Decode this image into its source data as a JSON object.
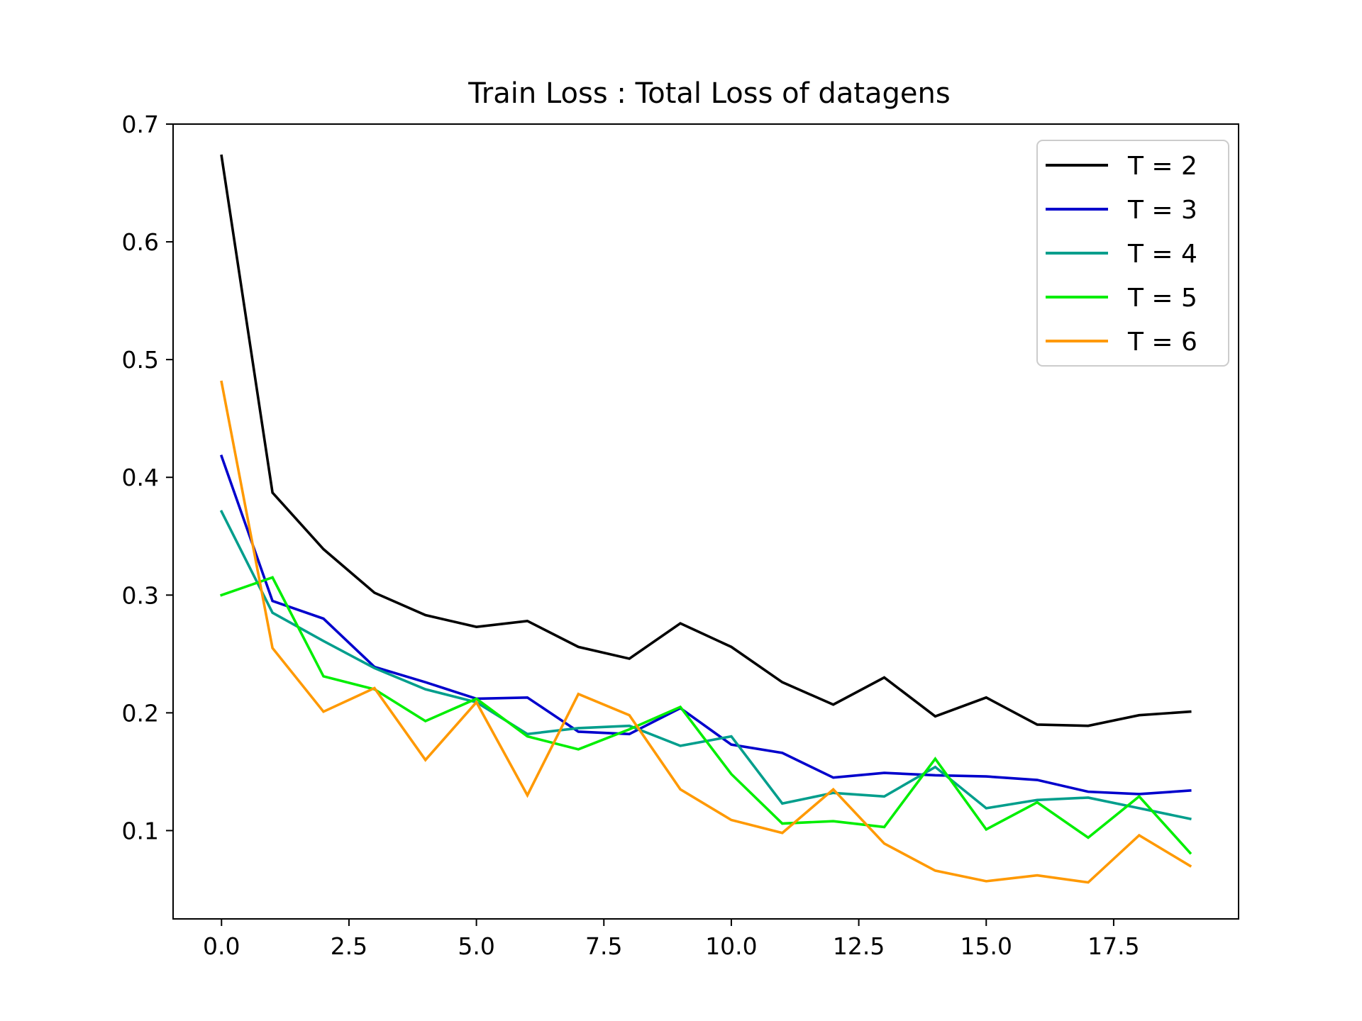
{
  "chart_data": {
    "type": "line",
    "title": "Train Loss : Total Loss of datagens",
    "xlabel": "",
    "ylabel": "",
    "xlim": [
      -0.95,
      19.95
    ],
    "ylim": [
      0.025,
      0.7
    ],
    "xticks": [
      0.0,
      2.5,
      5.0,
      7.5,
      10.0,
      12.5,
      15.0,
      17.5
    ],
    "xtick_labels": [
      "0.0",
      "2.5",
      "5.0",
      "7.5",
      "10.0",
      "12.5",
      "15.0",
      "17.5"
    ],
    "yticks": [
      0.1,
      0.2,
      0.3,
      0.4,
      0.5,
      0.6,
      0.7
    ],
    "ytick_labels": [
      "0.1",
      "0.2",
      "0.3",
      "0.4",
      "0.5",
      "0.6",
      "0.7"
    ],
    "grid": false,
    "legend_position": "top-right",
    "x": [
      0,
      1,
      2,
      3,
      4,
      5,
      6,
      7,
      8,
      9,
      10,
      11,
      12,
      13,
      14,
      15,
      16,
      17,
      18,
      19
    ],
    "series": [
      {
        "name": "T = 2",
        "color": "#000000",
        "values": [
          0.673,
          0.387,
          0.339,
          0.302,
          0.283,
          0.273,
          0.278,
          0.256,
          0.246,
          0.276,
          0.256,
          0.226,
          0.207,
          0.23,
          0.197,
          0.213,
          0.19,
          0.189,
          0.198,
          0.201
        ]
      },
      {
        "name": "T = 3",
        "color": "#0000cc",
        "values": [
          0.418,
          0.295,
          0.28,
          0.239,
          0.226,
          0.212,
          0.213,
          0.184,
          0.182,
          0.204,
          0.173,
          0.166,
          0.145,
          0.149,
          0.147,
          0.146,
          0.143,
          0.133,
          0.131,
          0.134
        ]
      },
      {
        "name": "T = 4",
        "color": "#009e8c",
        "values": [
          0.371,
          0.285,
          0.261,
          0.238,
          0.22,
          0.209,
          0.182,
          0.187,
          0.189,
          0.172,
          0.18,
          0.123,
          0.132,
          0.129,
          0.154,
          0.119,
          0.126,
          0.128,
          0.119,
          0.11
        ]
      },
      {
        "name": "T = 5",
        "color": "#00ee00",
        "values": [
          0.3,
          0.315,
          0.231,
          0.22,
          0.193,
          0.212,
          0.18,
          0.169,
          0.186,
          0.205,
          0.148,
          0.106,
          0.108,
          0.103,
          0.161,
          0.101,
          0.124,
          0.094,
          0.129,
          0.081
        ]
      },
      {
        "name": "T = 6",
        "color": "#ff9900",
        "values": [
          0.481,
          0.255,
          0.201,
          0.221,
          0.16,
          0.209,
          0.13,
          0.216,
          0.198,
          0.135,
          0.109,
          0.098,
          0.135,
          0.089,
          0.066,
          0.057,
          0.062,
          0.056,
          0.096,
          0.07
        ]
      }
    ]
  }
}
